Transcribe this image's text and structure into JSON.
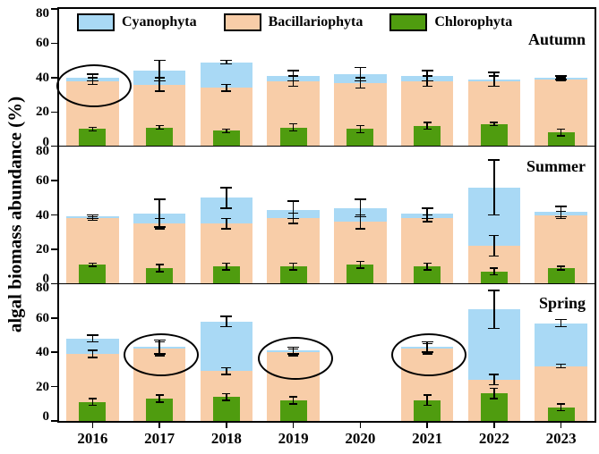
{
  "chart_data": {
    "type": "bar",
    "variant": "overlaid-bars-three-season-panels",
    "title": "",
    "ylabel": "algal biomass abundance (%)",
    "ylim": [
      0,
      80
    ],
    "yticks": [
      80,
      60,
      40,
      20,
      0
    ],
    "categories": [
      "2016",
      "2017",
      "2018",
      "2019",
      "2020",
      "2021",
      "2022",
      "2023"
    ],
    "series_names": [
      "Cyanophyta",
      "Bacillariophyta",
      "Chlorophyta"
    ],
    "colors": {
      "Cyanophyta": "#a9d9f5",
      "Bacillariophyta": "#f8cda8",
      "Chlorophyta": "#4f9c0f"
    },
    "legend": {
      "position": "top-inside-first-panel",
      "entries": [
        "Cyanophyta",
        "Bacillariophyta",
        "Chlorophyta"
      ]
    },
    "panels": [
      {
        "label": "Autumn",
        "series": {
          "Cyanophyta": {
            "values": [
              40,
              44,
              49,
              41,
              42,
              41,
              39,
              40
            ],
            "err": [
              2,
              6,
              1,
              3,
              4,
              3,
              4,
              1
            ]
          },
          "Bacillariophyta": {
            "values": [
              38,
              36,
              34,
              38,
              37,
              38,
              38,
              39
            ],
            "err": [
              2,
              4,
              2,
              3,
              3,
              3,
              3,
              1
            ]
          },
          "Chlorophyta": {
            "values": [
              10,
              11,
              9,
              11,
              10,
              12,
              13,
              8
            ],
            "err": [
              1,
              1,
              1,
              2,
              2,
              2,
              1,
              2
            ]
          }
        },
        "circled_categories": [
          "2016"
        ]
      },
      {
        "label": "Summer",
        "series": {
          "Cyanophyta": {
            "values": [
              39,
              41,
              50,
              43,
              44,
              41,
              56,
              42
            ],
            "err": [
              1,
              8,
              6,
              5,
              5,
              3,
              16,
              3
            ]
          },
          "Bacillariophyta": {
            "values": [
              38,
              35,
              35,
              38,
              36,
              38,
              22,
              40
            ],
            "err": [
              1,
              3,
              3,
              3,
              4,
              2,
              6,
              2
            ]
          },
          "Chlorophyta": {
            "values": [
              11,
              9,
              10,
              10,
              11,
              10,
              7,
              9
            ],
            "err": [
              1,
              2,
              2,
              2,
              2,
              2,
              2,
              1
            ]
          }
        },
        "circled_categories": []
      },
      {
        "label": "Spring",
        "series": {
          "Cyanophyta": {
            "values": [
              48,
              43,
              58,
              41,
              null,
              43,
              65,
              57
            ],
            "err": [
              2,
              4,
              3,
              2,
              null,
              3,
              11,
              2
            ]
          },
          "Bacillariophyta": {
            "values": [
              39,
              42,
              29,
              40,
              null,
              42,
              24,
              32
            ],
            "err": [
              2,
              4,
              2,
              2,
              null,
              3,
              3,
              1
            ]
          },
          "Chlorophyta": {
            "values": [
              11,
              13,
              14,
              12,
              null,
              12,
              16,
              8
            ],
            "err": [
              2,
              2,
              2,
              2,
              null,
              3,
              3,
              2
            ]
          }
        },
        "circled_categories": [
          "2017",
          "2019",
          "2021"
        ]
      }
    ]
  }
}
